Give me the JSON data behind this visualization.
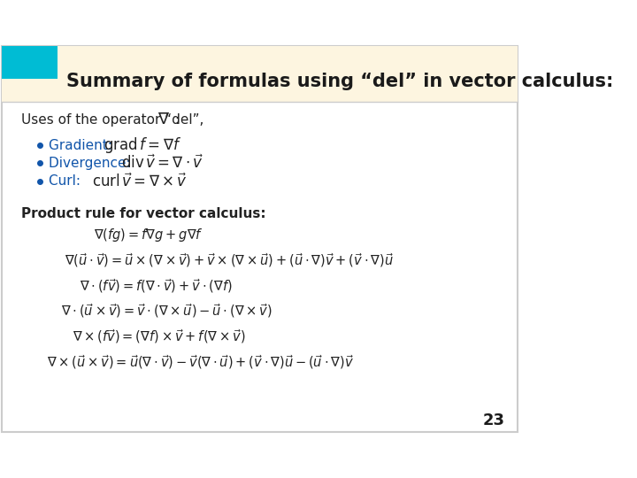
{
  "title": "Summary of formulas using “del” in vector calculus:",
  "title_color": "#1a1a1a",
  "header_bg": "#fdf5e0",
  "header_accent": "#00bcd4",
  "slide_bg": "#ffffff",
  "border_color": "#cccccc",
  "page_number": "23",
  "uses_label": "Uses of the operator “del”,",
  "uses_color": "#222222",
  "bullet_color": "#1155aa",
  "bullet_items": [
    [
      "Gradient: ",
      "\\mathrm{grad}\\, f = \\nabla f"
    ],
    [
      "Divergence: ",
      "\\mathrm{div}\\, \\vec{v} = \\nabla \\cdot \\vec{v}"
    ],
    [
      "Curl: ",
      "\\mathrm{curl}\\, \\vec{v} = \\nabla \\times \\vec{v}"
    ]
  ],
  "product_label": "Product rule for vector calculus:",
  "product_color": "#222222",
  "formulas": [
    "\\nabla(fg) = f\\nabla g + g\\nabla f",
    "\\nabla(\\vec{u} \\cdot \\vec{v}) = \\vec{u} \\times (\\nabla \\times \\vec{v}) + \\vec{v} \\times (\\nabla \\times \\vec{u}) + (\\vec{u} \\cdot \\nabla)\\vec{v} + (\\vec{v} \\cdot \\nabla)\\vec{u}",
    "\\nabla \\cdot (f\\vec{v}) = f(\\nabla \\cdot \\vec{v}) + \\vec{v} \\cdot (\\nabla f)",
    "\\nabla \\cdot (\\vec{u} \\times \\vec{v}) = \\vec{v} \\cdot (\\nabla \\times \\vec{u}) - \\vec{u} \\cdot (\\nabla \\times \\vec{v})",
    "\\nabla \\times (f\\vec{v}) = (\\nabla f) \\times \\vec{v} + f(\\nabla \\times \\vec{v})",
    "\\nabla \\times (\\vec{u} \\times \\vec{v}) = \\vec{u}(\\nabla \\cdot \\vec{v}) - \\vec{v}(\\nabla \\cdot \\vec{u}) + (\\vec{v} \\cdot \\nabla)\\vec{u} - (\\vec{u} \\cdot \\nabla)\\vec{v}"
  ],
  "formula_color": "#222222",
  "font_size_title": 15,
  "font_size_body": 11,
  "font_size_formula": 10.5,
  "font_size_page": 13
}
